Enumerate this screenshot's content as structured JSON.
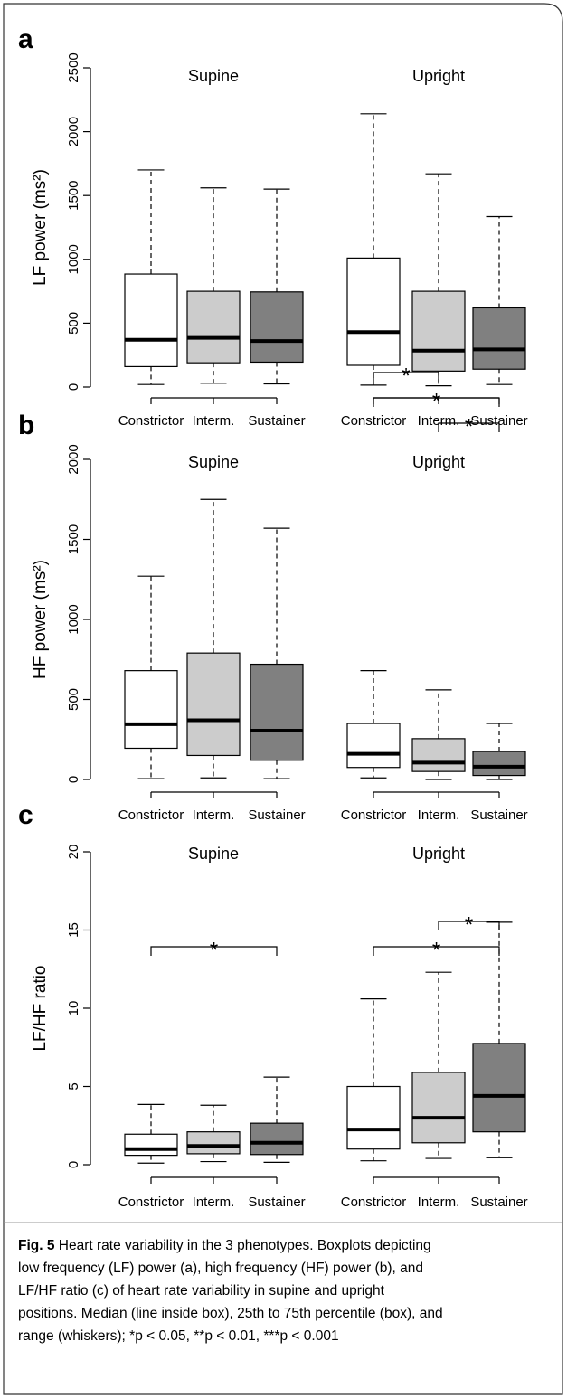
{
  "chart_data": [
    {
      "type": "box",
      "panel": "a",
      "ylabel": "LF power (ms²)",
      "ylim": [
        0,
        2500
      ],
      "yticks": [
        0,
        500,
        1000,
        1500,
        2000,
        2500
      ],
      "groups": [
        {
          "name": "Supine",
          "series": [
            {
              "name": "Constrictor",
              "color": "#ffffff",
              "min": 20,
              "q1": 160,
              "median": 370,
              "q3": 885,
              "max": 1700
            },
            {
              "name": "Interm.",
              "color": "#cccccc",
              "min": 30,
              "q1": 190,
              "median": 385,
              "q3": 750,
              "max": 1560
            },
            {
              "name": "Sustainer",
              "color": "#808080",
              "min": 25,
              "q1": 195,
              "median": 360,
              "q3": 745,
              "max": 1550
            }
          ],
          "significance": []
        },
        {
          "name": "Upright",
          "series": [
            {
              "name": "Constrictor",
              "color": "#ffffff",
              "min": 15,
              "q1": 170,
              "median": 430,
              "q3": 1010,
              "max": 2140
            },
            {
              "name": "Interm.",
              "color": "#cccccc",
              "min": 10,
              "q1": 125,
              "median": 285,
              "q3": 750,
              "max": 1670
            },
            {
              "name": "Sustainer",
              "color": "#808080",
              "min": 20,
              "q1": 140,
              "median": 295,
              "q3": 620,
              "max": 1335
            }
          ],
          "significance": []
        }
      ]
    },
    {
      "type": "box",
      "panel": "b",
      "ylabel": "HF power (ms²)",
      "ylim": [
        0,
        2000
      ],
      "yticks": [
        0,
        500,
        1000,
        1500,
        2000
      ],
      "groups": [
        {
          "name": "Supine",
          "series": [
            {
              "name": "Constrictor",
              "color": "#ffffff",
              "min": 5,
              "q1": 195,
              "median": 345,
              "q3": 680,
              "max": 1270
            },
            {
              "name": "Interm.",
              "color": "#cccccc",
              "min": 10,
              "q1": 150,
              "median": 370,
              "q3": 790,
              "max": 1750
            },
            {
              "name": "Sustainer",
              "color": "#808080",
              "min": 5,
              "q1": 120,
              "median": 305,
              "q3": 720,
              "max": 1570
            }
          ],
          "significance": []
        },
        {
          "name": "Upright",
          "series": [
            {
              "name": "Constrictor",
              "color": "#ffffff",
              "min": 10,
              "q1": 75,
              "median": 160,
              "q3": 350,
              "max": 680
            },
            {
              "name": "Interm.",
              "color": "#cccccc",
              "min": 0,
              "q1": 50,
              "median": 105,
              "q3": 255,
              "max": 560
            },
            {
              "name": "Sustainer",
              "color": "#808080",
              "min": 0,
              "q1": 25,
              "median": 80,
              "q3": 175,
              "max": 350
            }
          ],
          "significance": [
            {
              "from": "Constrictor",
              "to": "Interm.",
              "label": "*"
            },
            {
              "from": "Constrictor",
              "to": "Sustainer",
              "label": "*"
            },
            {
              "from": "Interm.",
              "to": "Sustainer",
              "label": "*"
            }
          ]
        }
      ]
    },
    {
      "type": "box",
      "panel": "c",
      "ylabel": "LF/HF ratio",
      "ylim": [
        0,
        20
      ],
      "yticks": [
        0,
        5,
        10,
        15,
        20
      ],
      "groups": [
        {
          "name": "Supine",
          "series": [
            {
              "name": "Constrictor",
              "color": "#ffffff",
              "min": 0.1,
              "q1": 0.6,
              "median": 1.0,
              "q3": 1.95,
              "max": 3.85
            },
            {
              "name": "Interm.",
              "color": "#cccccc",
              "min": 0.2,
              "q1": 0.7,
              "median": 1.2,
              "q3": 2.1,
              "max": 3.8
            },
            {
              "name": "Sustainer",
              "color": "#808080",
              "min": 0.15,
              "q1": 0.65,
              "median": 1.4,
              "q3": 2.65,
              "max": 5.6
            }
          ],
          "significance": [
            {
              "from": "Constrictor",
              "to": "Sustainer",
              "label": "*"
            }
          ]
        },
        {
          "name": "Upright",
          "series": [
            {
              "name": "Constrictor",
              "color": "#ffffff",
              "min": 0.25,
              "q1": 1.0,
              "median": 2.25,
              "q3": 5.0,
              "max": 10.6
            },
            {
              "name": "Interm.",
              "color": "#cccccc",
              "min": 0.4,
              "q1": 1.4,
              "median": 3.0,
              "q3": 5.9,
              "max": 12.3
            },
            {
              "name": "Sustainer",
              "color": "#808080",
              "min": 0.45,
              "q1": 2.1,
              "median": 4.4,
              "q3": 7.75,
              "max": 15.5
            }
          ],
          "significance": [
            {
              "from": "Interm.",
              "to": "Sustainer",
              "label": "*"
            },
            {
              "from": "Constrictor",
              "to": "Sustainer",
              "label": "*"
            }
          ]
        }
      ]
    }
  ],
  "caption": {
    "label": "Fig. 5",
    "lines": [
      "Heart rate variability in the 3 phenotypes. Boxplots depicting",
      "low frequency (LF) power (a), high frequency (HF) power (b), and",
      "LF/HF ratio (c) of heart rate variability in supine and upright",
      "positions. Median (line inside box), 25th to 75th percentile (box), and",
      "range (whiskers); *p < 0.05, **p < 0.01, ***p < 0.001"
    ]
  }
}
